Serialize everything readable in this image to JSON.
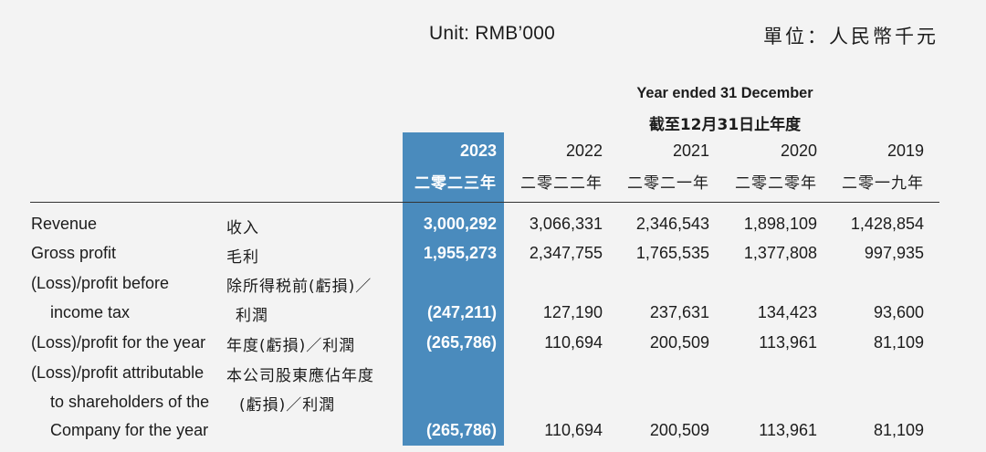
{
  "unit": {
    "en": "Unit: RMB’000",
    "zh": "單位：人民幣千元"
  },
  "heading": {
    "en": "Year ended 31 December",
    "zh": "截至12月31日止年度"
  },
  "years": [
    {
      "en": "2023",
      "zh": "二零二三年"
    },
    {
      "en": "2022",
      "zh": "二零二二年"
    },
    {
      "en": "2021",
      "zh": "二零二一年"
    },
    {
      "en": "2020",
      "zh": "二零二零年"
    },
    {
      "en": "2019",
      "zh": "二零一九年"
    }
  ],
  "rows": [
    {
      "en": [
        "Revenue"
      ],
      "zh": [
        "收入"
      ],
      "values": [
        "3,000,292",
        "3,066,331",
        "2,346,543",
        "1,898,109",
        "1,428,854"
      ]
    },
    {
      "en": [
        "Gross profit"
      ],
      "zh": [
        "毛利"
      ],
      "values": [
        "1,955,273",
        "2,347,755",
        "1,765,535",
        "1,377,808",
        "997,935"
      ]
    },
    {
      "en": [
        "(Loss)/profit before",
        "income tax"
      ],
      "zh": [
        "除所得税前(虧損)／",
        "利潤"
      ],
      "values": [
        "(247,211)",
        "127,190",
        "237,631",
        "134,423",
        "93,600"
      ]
    },
    {
      "en": [
        "(Loss)/profit for the year"
      ],
      "zh": [
        "年度(虧損)／利潤"
      ],
      "values": [
        "(265,786)",
        "110,694",
        "200,509",
        "113,961",
        "81,109"
      ]
    },
    {
      "en": [
        "(Loss)/profit attributable",
        "to shareholders of the",
        "Company for the year"
      ],
      "zh": [
        "本公司股東應佔年度",
        "(虧損)／利潤"
      ],
      "values": [
        "(265,786)",
        "110,694",
        "200,509",
        "113,961",
        "81,109"
      ]
    }
  ]
}
